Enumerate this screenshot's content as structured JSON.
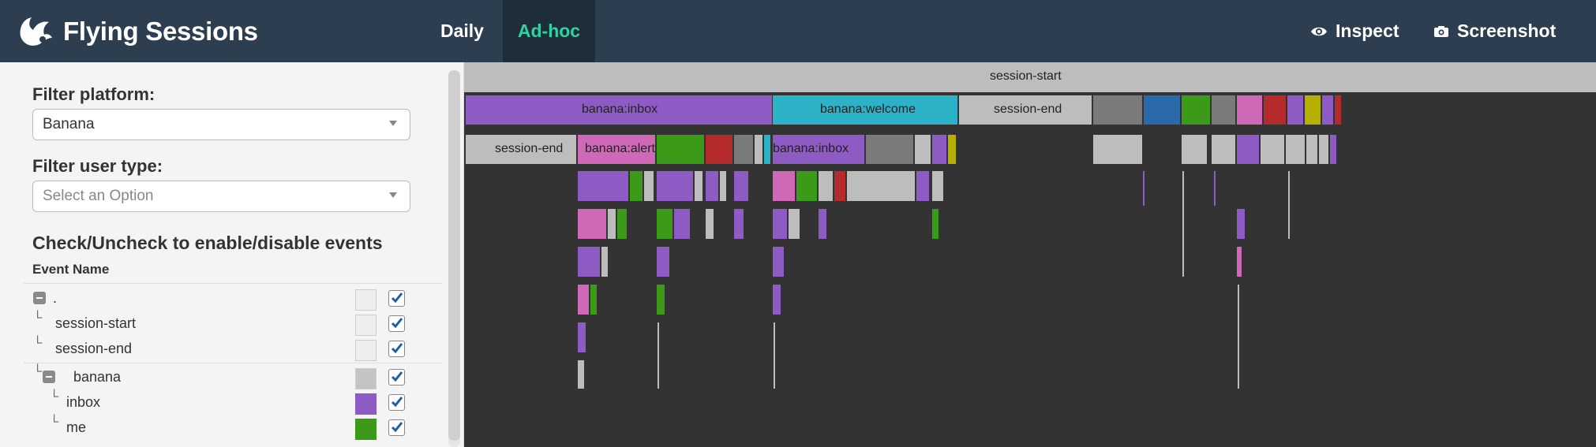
{
  "navbar": {
    "title": "Flying Sessions",
    "tabs": [
      {
        "label": "Daily",
        "active": false
      },
      {
        "label": "Ad-hoc",
        "active": true
      }
    ],
    "actions": {
      "inspect": {
        "label": "Inspect",
        "icon": "eye-icon"
      },
      "screenshot": {
        "label": "Screenshot",
        "icon": "camera-icon"
      }
    },
    "colors": {
      "background": "#2c3e50",
      "active_tab_bg": "#1f2d3b",
      "active_tab_text": "#2fd3a3"
    }
  },
  "sidebar": {
    "filter_platform": {
      "label": "Filter platform:",
      "value": "Banana"
    },
    "filter_user_type": {
      "label": "Filter user type:",
      "placeholder": "Select an Option"
    },
    "events": {
      "title": "Check/Uncheck to enable/disable events",
      "column_header": "Event Name",
      "rows": [
        {
          "name": ".",
          "depth": 0,
          "expandable": true,
          "color": "#eeeeee",
          "checked": true
        },
        {
          "name": "session-start",
          "depth": 1,
          "expandable": false,
          "color": "#eeeeee",
          "checked": true
        },
        {
          "name": "session-end",
          "depth": 1,
          "expandable": false,
          "color": "#eeeeee",
          "checked": true
        },
        {
          "name": "banana",
          "depth": 1,
          "expandable": true,
          "color": "#c4c4c4",
          "checked": true
        },
        {
          "name": "inbox",
          "depth": 2,
          "expandable": false,
          "color": "#8e5bc4",
          "checked": true
        },
        {
          "name": "me",
          "depth": 2,
          "expandable": false,
          "color": "#3b9a18",
          "checked": true
        }
      ]
    }
  },
  "flame_chart": {
    "labels": {
      "session_start": "session-start",
      "banana_inbox": "banana:inbox",
      "banana_welcome": "banana:welcome",
      "session_end_top": "session-end",
      "session_end_left": "session-end",
      "banana_alert": "banana:alert",
      "banana_inbox_2": "banana:inbox"
    },
    "colors": {
      "background": "#333333",
      "inbox": "#8e5bc4",
      "welcome": "#2bb2c7",
      "alert": "#d068b8",
      "me": "#3b9a18",
      "red": "#b52a2a",
      "blue": "#2a6aa8",
      "olive": "#b8b000",
      "grey": "#bdbdbd",
      "dark_grey": "#7a7a7a"
    }
  }
}
